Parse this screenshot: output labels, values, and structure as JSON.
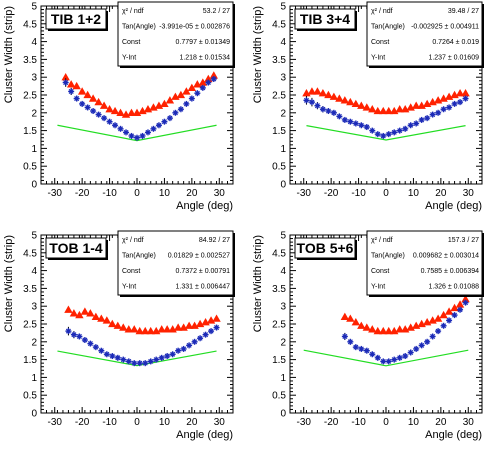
{
  "colors": {
    "triangles": "#ff2200",
    "stars": "#1c2bb8",
    "errorbar": "#000000",
    "fit": "#22dd22",
    "frame": "#000000"
  },
  "chart_data": [
    {
      "type": "scatter",
      "title": "TIB 1+2",
      "xlabel": "Angle (deg)",
      "ylabel": "Cluster Width (strip)",
      "xlim": [
        -35,
        35
      ],
      "ylim": [
        0,
        5
      ],
      "xticks": [
        "-30",
        "-20",
        "-10",
        "0",
        "10",
        "20",
        "30"
      ],
      "yticks": [
        "0",
        "0.5",
        "1",
        "1.5",
        "2",
        "2.5",
        "3",
        "3.5",
        "4",
        "4.5",
        "5"
      ],
      "stats": [
        {
          "label": "χ² / ndf",
          "value": "53.2 / 27"
        },
        {
          "label": "Tan(Angle)",
          "value": "-3.991e-05 ± 0.002876"
        },
        {
          "label": "Const",
          "value": "0.7797 ± 0.01349"
        },
        {
          "label": "Y-Int",
          "value": "1.218 ± 0.01534"
        }
      ],
      "fit": {
        "x": [
          -29,
          29
        ],
        "const": 0.7797,
        "yint": 1.218
      },
      "series": [
        {
          "marker": "triangle",
          "x": [
            -26,
            -24,
            -22,
            -20,
            -18,
            -16,
            -14,
            -12,
            -10,
            -8,
            -6,
            -4,
            -2,
            0,
            2,
            4,
            6,
            8,
            10,
            12,
            14,
            16,
            18,
            20,
            22,
            24,
            26,
            28
          ],
          "y": [
            3.0,
            2.8,
            2.75,
            2.6,
            2.5,
            2.4,
            2.3,
            2.2,
            2.1,
            2.05,
            2.0,
            1.95,
            2.0,
            2.0,
            2.05,
            2.1,
            2.15,
            2.2,
            2.25,
            2.35,
            2.45,
            2.5,
            2.6,
            2.7,
            2.8,
            2.85,
            2.95,
            3.05
          ]
        },
        {
          "marker": "star",
          "x": [
            -26,
            -24,
            -22,
            -20,
            -18,
            -16,
            -14,
            -12,
            -10,
            -8,
            -6,
            -4,
            -2,
            0,
            2,
            4,
            6,
            8,
            10,
            12,
            14,
            16,
            18,
            20,
            22,
            24,
            26,
            28
          ],
          "y": [
            2.85,
            2.6,
            2.4,
            2.25,
            2.15,
            2.05,
            1.95,
            1.85,
            1.75,
            1.65,
            1.55,
            1.45,
            1.35,
            1.3,
            1.35,
            1.45,
            1.55,
            1.65,
            1.75,
            1.85,
            2.0,
            2.1,
            2.25,
            2.4,
            2.55,
            2.7,
            2.85,
            2.95
          ],
          "err": [
            0.12,
            0.1,
            0.08,
            0.07,
            0.06,
            0.05,
            0.05,
            0.05,
            0.04,
            0.04,
            0.04,
            0.04,
            0.04,
            0.04,
            0.04,
            0.04,
            0.04,
            0.04,
            0.04,
            0.05,
            0.05,
            0.05,
            0.05,
            0.05,
            0.05,
            0.06,
            0.06,
            0.07
          ]
        }
      ]
    },
    {
      "type": "scatter",
      "title": "TIB 3+4",
      "xlabel": "Angle (deg)",
      "ylabel": "Cluster Width (strip)",
      "xlim": [
        -35,
        35
      ],
      "ylim": [
        0,
        5
      ],
      "xticks": [
        "-30",
        "-20",
        "-10",
        "0",
        "10",
        "20",
        "30"
      ],
      "yticks": [
        "0",
        "0.5",
        "1",
        "1.5",
        "2",
        "2.5",
        "3",
        "3.5",
        "4",
        "4.5",
        "5"
      ],
      "stats": [
        {
          "label": "χ² / ndf",
          "value": "39.48 / 27"
        },
        {
          "label": "Tan(Angle)",
          "value": "-0.002925 ± 0.004911"
        },
        {
          "label": "Const",
          "value": "0.7264 ± 0.019"
        },
        {
          "label": "Y-Int",
          "value": "1.237 ± 0.01609"
        }
      ],
      "fit": {
        "x": [
          -29,
          29
        ],
        "const": 0.7264,
        "yint": 1.237
      },
      "series": [
        {
          "marker": "triangle",
          "x": [
            -29,
            -27,
            -25,
            -23,
            -21,
            -19,
            -17,
            -15,
            -13,
            -11,
            -9,
            -7,
            -5,
            -3,
            -1,
            1,
            3,
            5,
            7,
            9,
            11,
            13,
            15,
            17,
            19,
            21,
            23,
            25,
            27,
            29
          ],
          "y": [
            2.55,
            2.6,
            2.6,
            2.55,
            2.5,
            2.45,
            2.4,
            2.35,
            2.3,
            2.25,
            2.2,
            2.15,
            2.1,
            2.05,
            2.05,
            2.05,
            2.05,
            2.1,
            2.1,
            2.15,
            2.2,
            2.2,
            2.25,
            2.3,
            2.35,
            2.4,
            2.45,
            2.5,
            2.55,
            2.55
          ]
        },
        {
          "marker": "star",
          "x": [
            -29,
            -27,
            -25,
            -23,
            -21,
            -19,
            -17,
            -15,
            -13,
            -11,
            -9,
            -7,
            -5,
            -3,
            -1,
            1,
            3,
            5,
            7,
            9,
            11,
            13,
            15,
            17,
            19,
            21,
            23,
            25,
            27,
            29
          ],
          "y": [
            2.35,
            2.3,
            2.2,
            2.1,
            2.05,
            2.0,
            1.9,
            1.8,
            1.75,
            1.7,
            1.65,
            1.6,
            1.5,
            1.4,
            1.35,
            1.4,
            1.45,
            1.5,
            1.55,
            1.65,
            1.7,
            1.8,
            1.85,
            1.95,
            2.0,
            2.1,
            2.15,
            2.25,
            2.3,
            2.4
          ],
          "err": [
            0.12,
            0.12,
            0.1,
            0.09,
            0.08,
            0.07,
            0.06,
            0.06,
            0.05,
            0.05,
            0.05,
            0.05,
            0.05,
            0.05,
            0.05,
            0.05,
            0.05,
            0.05,
            0.05,
            0.05,
            0.05,
            0.05,
            0.05,
            0.05,
            0.05,
            0.05,
            0.05,
            0.05,
            0.05,
            0.06
          ]
        }
      ]
    },
    {
      "type": "scatter",
      "title": "TOB 1-4",
      "xlabel": "Angle (deg)",
      "ylabel": "Cluster Width (strip)",
      "xlim": [
        -35,
        35
      ],
      "ylim": [
        0,
        5
      ],
      "xticks": [
        "-30",
        "-20",
        "-10",
        "0",
        "10",
        "20",
        "30"
      ],
      "yticks": [
        "0",
        "0.5",
        "1",
        "1.5",
        "2",
        "2.5",
        "3",
        "3.5",
        "4",
        "4.5",
        "5"
      ],
      "stats": [
        {
          "label": "χ² / ndf",
          "value": "84.92 / 27"
        },
        {
          "label": "Tan(Angle)",
          "value": "0.01829 ± 0.002527"
        },
        {
          "label": "Const",
          "value": "0.7372 ± 0.00791"
        },
        {
          "label": "Y-Int",
          "value": "1.331 ± 0.006447"
        }
      ],
      "fit": {
        "x": [
          -29,
          29
        ],
        "const": 0.7372,
        "yint": 1.331
      },
      "series": [
        {
          "marker": "triangle",
          "x": [
            -25,
            -23,
            -21,
            -19,
            -17,
            -15,
            -13,
            -11,
            -9,
            -7,
            -5,
            -3,
            -1,
            1,
            3,
            5,
            7,
            9,
            11,
            13,
            15,
            17,
            19,
            21,
            23,
            25,
            27,
            29
          ],
          "y": [
            2.9,
            2.8,
            2.75,
            2.85,
            2.8,
            2.7,
            2.65,
            2.6,
            2.5,
            2.45,
            2.4,
            2.35,
            2.35,
            2.3,
            2.3,
            2.3,
            2.3,
            2.35,
            2.35,
            2.35,
            2.4,
            2.4,
            2.45,
            2.45,
            2.5,
            2.55,
            2.6,
            2.65
          ]
        },
        {
          "marker": "star",
          "x": [
            -25,
            -23,
            -21,
            -19,
            -17,
            -15,
            -13,
            -11,
            -9,
            -7,
            -5,
            -3,
            -1,
            1,
            3,
            5,
            7,
            9,
            11,
            13,
            15,
            17,
            19,
            21,
            23,
            25,
            27,
            29
          ],
          "y": [
            2.3,
            2.2,
            2.15,
            2.05,
            1.95,
            1.85,
            1.75,
            1.65,
            1.6,
            1.55,
            1.5,
            1.45,
            1.4,
            1.4,
            1.4,
            1.45,
            1.5,
            1.55,
            1.6,
            1.65,
            1.75,
            1.8,
            1.9,
            2.0,
            2.1,
            2.2,
            2.3,
            2.4
          ],
          "err": [
            0.12,
            0.1,
            0.08,
            0.07,
            0.06,
            0.05,
            0.05,
            0.04,
            0.04,
            0.04,
            0.04,
            0.04,
            0.04,
            0.04,
            0.04,
            0.04,
            0.04,
            0.04,
            0.04,
            0.04,
            0.04,
            0.04,
            0.04,
            0.04,
            0.05,
            0.05,
            0.05,
            0.05
          ]
        }
      ]
    },
    {
      "type": "scatter",
      "title": "TOB 5+6",
      "xlabel": "Angle (deg)",
      "ylabel": "Cluster Width (strip)",
      "xlim": [
        -35,
        35
      ],
      "ylim": [
        0,
        5
      ],
      "xticks": [
        "-30",
        "-20",
        "-10",
        "0",
        "10",
        "20",
        "30"
      ],
      "yticks": [
        "0",
        "0.5",
        "1",
        "1.5",
        "2",
        "2.5",
        "3",
        "3.5",
        "4",
        "4.5",
        "5"
      ],
      "stats": [
        {
          "label": "χ² / ndf",
          "value": "157.3 / 27"
        },
        {
          "label": "Tan(Angle)",
          "value": "0.009682 ± 0.003014"
        },
        {
          "label": "Const",
          "value": "0.7585 ± 0.006394"
        },
        {
          "label": "Y-Int",
          "value": "1.326 ± 0.01088"
        }
      ],
      "fit": {
        "x": [
          -30,
          30
        ],
        "const": 0.7585,
        "yint": 1.326
      },
      "series": [
        {
          "marker": "triangle",
          "x": [
            -15,
            -13,
            -11,
            -9,
            -7,
            -5,
            -3,
            -1,
            1,
            3,
            5,
            7,
            9,
            11,
            13,
            15,
            17,
            19,
            21,
            23,
            25,
            27,
            29
          ],
          "y": [
            2.7,
            2.65,
            2.55,
            2.45,
            2.4,
            2.35,
            2.3,
            2.3,
            2.3,
            2.3,
            2.35,
            2.35,
            2.4,
            2.45,
            2.5,
            2.55,
            2.6,
            2.65,
            2.75,
            2.85,
            2.95,
            3.05,
            3.2
          ]
        },
        {
          "marker": "star",
          "x": [
            -15,
            -13,
            -11,
            -9,
            -7,
            -5,
            -3,
            -1,
            1,
            3,
            5,
            7,
            9,
            11,
            13,
            15,
            17,
            19,
            21,
            23,
            25,
            27,
            29
          ],
          "y": [
            2.15,
            2.0,
            1.85,
            1.8,
            1.75,
            1.65,
            1.55,
            1.45,
            1.45,
            1.5,
            1.55,
            1.6,
            1.7,
            1.8,
            1.9,
            2.0,
            2.15,
            2.3,
            2.45,
            2.6,
            2.75,
            2.9,
            3.1
          ],
          "err": [
            0.1,
            0.08,
            0.07,
            0.06,
            0.05,
            0.05,
            0.05,
            0.04,
            0.04,
            0.04,
            0.04,
            0.04,
            0.04,
            0.04,
            0.04,
            0.04,
            0.04,
            0.04,
            0.05,
            0.05,
            0.05,
            0.05,
            0.06
          ]
        }
      ]
    }
  ]
}
